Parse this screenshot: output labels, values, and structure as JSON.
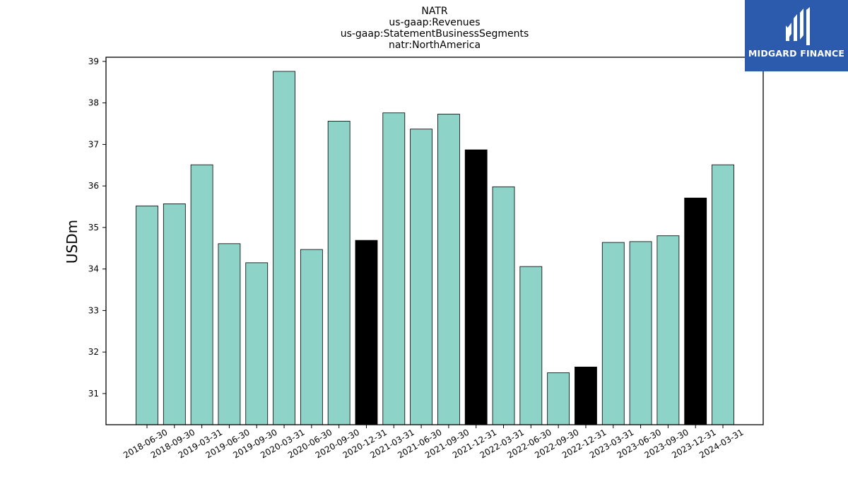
{
  "chart_data": {
    "type": "bar",
    "title_lines": [
      "NATR",
      "us-gaap:Revenues",
      "us-gaap:StatementBusinessSegments",
      "natr:NorthAmerica"
    ],
    "ylabel": "USDm",
    "xlabel": "",
    "ylim": [
      30.25,
      39.1
    ],
    "yticks": [
      31,
      32,
      33,
      34,
      35,
      36,
      37,
      38,
      39
    ],
    "categories": [
      "2018-06-30",
      "2018-09-30",
      "2019-03-31",
      "2019-06-30",
      "2019-09-30",
      "2020-03-31",
      "2020-06-30",
      "2020-09-30",
      "2020-12-31",
      "2021-03-31",
      "2021-06-30",
      "2021-09-30",
      "2021-12-31",
      "2022-03-31",
      "2022-06-30",
      "2022-09-30",
      "2022-12-31",
      "2023-03-31",
      "2023-06-30",
      "2023-09-30",
      "2023-12-31",
      "2024-03-31"
    ],
    "values": [
      35.52,
      35.57,
      36.51,
      34.61,
      34.15,
      38.76,
      34.47,
      37.56,
      34.69,
      37.76,
      37.37,
      37.73,
      36.87,
      35.98,
      34.06,
      31.5,
      31.64,
      34.64,
      34.66,
      34.8,
      35.71,
      36.51
    ],
    "highlight": [
      false,
      false,
      false,
      false,
      false,
      false,
      false,
      false,
      true,
      false,
      false,
      false,
      true,
      false,
      false,
      false,
      true,
      false,
      false,
      false,
      true,
      false
    ],
    "colors": {
      "bar": "#8dd3c7",
      "highlight": "#000000",
      "edge": "#000000"
    },
    "grid": false,
    "legend": "none"
  },
  "logo": {
    "text": "MIDGARD FINANCE",
    "background": "#2c5aad",
    "icon": "midgard-logo-icon"
  }
}
